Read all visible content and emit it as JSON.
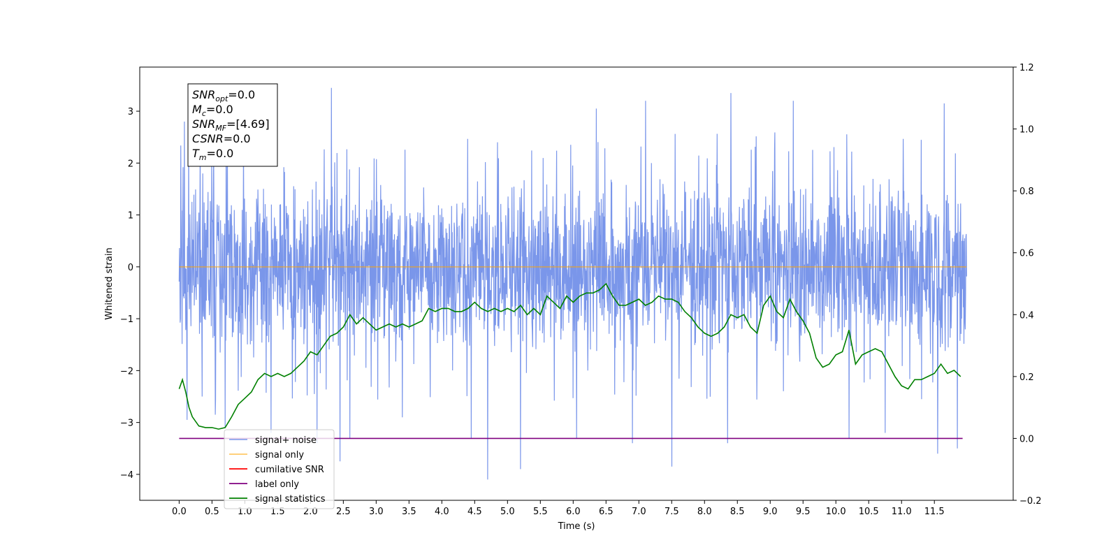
{
  "chart_data": {
    "type": "line",
    "xlabel": "Time (s)",
    "ylabel": "Whitened strain",
    "ylabel_right": "",
    "xlim": [
      -0.6,
      12.7
    ],
    "ylim": [
      -4.5,
      3.85
    ],
    "ylim_right": [
      -0.2,
      1.2
    ],
    "x_ticks": [
      0.0,
      0.5,
      1.0,
      1.5,
      2.0,
      2.5,
      3.0,
      3.5,
      4.0,
      4.5,
      5.0,
      5.5,
      6.0,
      6.5,
      7.0,
      7.5,
      8.0,
      8.5,
      9.0,
      9.5,
      10.0,
      10.5,
      11.0,
      11.5
    ],
    "x_tick_labels": [
      "0.0",
      "0.5",
      "1.0",
      "1.5",
      "2.0",
      "2.5",
      "3.0",
      "3.5",
      "4.0",
      "4.5",
      "5.0",
      "5.5",
      "6.0",
      "6.5",
      "7.0",
      "7.5",
      "8.0",
      "8.5",
      "9.0",
      "9.5",
      "10.0",
      "10.5",
      "11.0",
      "11.5"
    ],
    "y_ticks": [
      3,
      2,
      1,
      0,
      -1,
      -2,
      -3,
      -4
    ],
    "y_tick_labels": [
      "3",
      "2",
      "1",
      "0",
      "−1",
      "−2",
      "−3",
      "−4"
    ],
    "y_ticks_right": [
      1.2,
      1.0,
      0.8,
      0.6,
      0.4,
      0.2,
      0.0,
      -0.2
    ],
    "y_tick_labels_right": [
      "1.2",
      "1.0",
      "0.8",
      "0.6",
      "0.4",
      "0.2",
      "0.0",
      "−0.2"
    ],
    "grid": false,
    "legend_position": "bottom-left",
    "annotation_lines": [
      {
        "sym": "SNR",
        "sub": "opt",
        "rest": "=0.0"
      },
      {
        "sym": "M",
        "sub": "c",
        "rest": "=0.0"
      },
      {
        "sym": "SNR",
        "sub": "MF",
        "rest": "=[4.69]"
      },
      {
        "sym": "CSNR",
        "sub": "",
        "rest": "=0.0"
      },
      {
        "sym": "T",
        "sub": "m",
        "rest": "=0.0"
      }
    ],
    "series": [
      {
        "name": "signal+ noise",
        "color": "#4169e1",
        "axis": "left",
        "x_range": [
          0.0,
          11.99
        ],
        "typical_range": [
          -1.8,
          1.8
        ],
        "peaks": [
          {
            "x": 0.08,
            "y": 2.8
          },
          {
            "x": 0.12,
            "y": -2.95
          },
          {
            "x": 0.35,
            "y": -2.5
          },
          {
            "x": 0.55,
            "y": -2.85
          },
          {
            "x": 0.7,
            "y": -3.1
          },
          {
            "x": 1.4,
            "y": -3.2
          },
          {
            "x": 2.1,
            "y": -3.4
          },
          {
            "x": 2.32,
            "y": 3.45
          },
          {
            "x": 2.45,
            "y": -3.75
          },
          {
            "x": 2.6,
            "y": -3.3
          },
          {
            "x": 3.4,
            "y": -2.9
          },
          {
            "x": 4.45,
            "y": -3.3
          },
          {
            "x": 4.7,
            "y": -4.1
          },
          {
            "x": 5.2,
            "y": -3.9
          },
          {
            "x": 6.05,
            "y": -3.3
          },
          {
            "x": 6.35,
            "y": 3.05
          },
          {
            "x": 6.9,
            "y": -3.4
          },
          {
            "x": 7.1,
            "y": 3.2
          },
          {
            "x": 7.5,
            "y": -3.85
          },
          {
            "x": 8.35,
            "y": -3.4
          },
          {
            "x": 8.4,
            "y": 3.35
          },
          {
            "x": 9.35,
            "y": 3.2
          },
          {
            "x": 10.2,
            "y": -3.3
          },
          {
            "x": 10.75,
            "y": -3.2
          },
          {
            "x": 11.55,
            "y": -3.6
          },
          {
            "x": 11.65,
            "y": 3.15
          },
          {
            "x": 11.85,
            "y": -3.5
          }
        ]
      },
      {
        "name": "signal only",
        "color": "#ffa500",
        "axis": "left",
        "x": [
          0.0,
          11.99
        ],
        "y": [
          0.0,
          0.0
        ]
      },
      {
        "name": "cumilative SNR",
        "color": "#ff0000",
        "axis": "right",
        "x": [],
        "y": []
      },
      {
        "name": "label only",
        "color": "#800080",
        "axis": "right",
        "x": [
          0.0,
          11.93
        ],
        "y": [
          0.0,
          0.0
        ]
      },
      {
        "name": "signal statistics",
        "color": "#008000",
        "axis": "right",
        "x": [
          0.0,
          0.05,
          0.1,
          0.15,
          0.2,
          0.3,
          0.4,
          0.5,
          0.6,
          0.7,
          0.8,
          0.9,
          1.0,
          1.1,
          1.2,
          1.3,
          1.4,
          1.5,
          1.6,
          1.7,
          1.8,
          1.9,
          2.0,
          2.1,
          2.2,
          2.3,
          2.4,
          2.5,
          2.6,
          2.7,
          2.8,
          2.9,
          3.0,
          3.1,
          3.2,
          3.3,
          3.4,
          3.5,
          3.6,
          3.7,
          3.8,
          3.9,
          4.0,
          4.1,
          4.2,
          4.3,
          4.4,
          4.5,
          4.6,
          4.7,
          4.8,
          4.9,
          5.0,
          5.1,
          5.2,
          5.3,
          5.4,
          5.5,
          5.6,
          5.7,
          5.8,
          5.9,
          6.0,
          6.1,
          6.2,
          6.3,
          6.4,
          6.5,
          6.6,
          6.7,
          6.8,
          6.9,
          7.0,
          7.1,
          7.2,
          7.3,
          7.4,
          7.5,
          7.6,
          7.7,
          7.8,
          7.9,
          8.0,
          8.1,
          8.2,
          8.3,
          8.4,
          8.5,
          8.6,
          8.7,
          8.8,
          8.9,
          9.0,
          9.1,
          9.2,
          9.3,
          9.4,
          9.5,
          9.6,
          9.7,
          9.8,
          9.9,
          10.0,
          10.1,
          10.2,
          10.3,
          10.4,
          10.5,
          10.6,
          10.7,
          10.8,
          10.9,
          11.0,
          11.1,
          11.2,
          11.3,
          11.4,
          11.5,
          11.6,
          11.7,
          11.8,
          11.9
        ],
        "y": [
          0.16,
          0.19,
          0.15,
          0.1,
          0.07,
          0.04,
          0.035,
          0.035,
          0.03,
          0.035,
          0.07,
          0.11,
          0.13,
          0.15,
          0.19,
          0.21,
          0.2,
          0.21,
          0.2,
          0.21,
          0.23,
          0.25,
          0.28,
          0.27,
          0.3,
          0.33,
          0.34,
          0.36,
          0.4,
          0.37,
          0.39,
          0.37,
          0.35,
          0.36,
          0.37,
          0.36,
          0.37,
          0.36,
          0.37,
          0.38,
          0.42,
          0.41,
          0.42,
          0.42,
          0.41,
          0.41,
          0.42,
          0.44,
          0.42,
          0.41,
          0.42,
          0.41,
          0.42,
          0.41,
          0.43,
          0.4,
          0.42,
          0.4,
          0.46,
          0.44,
          0.42,
          0.46,
          0.44,
          0.46,
          0.47,
          0.47,
          0.48,
          0.5,
          0.46,
          0.43,
          0.43,
          0.44,
          0.45,
          0.43,
          0.44,
          0.46,
          0.45,
          0.45,
          0.44,
          0.41,
          0.39,
          0.36,
          0.34,
          0.33,
          0.34,
          0.36,
          0.4,
          0.39,
          0.4,
          0.36,
          0.34,
          0.43,
          0.46,
          0.41,
          0.39,
          0.45,
          0.41,
          0.38,
          0.34,
          0.26,
          0.23,
          0.24,
          0.27,
          0.28,
          0.35,
          0.24,
          0.27,
          0.28,
          0.29,
          0.28,
          0.24,
          0.2,
          0.17,
          0.16,
          0.19,
          0.19,
          0.2,
          0.21,
          0.24,
          0.21,
          0.22,
          0.2
        ]
      }
    ]
  }
}
